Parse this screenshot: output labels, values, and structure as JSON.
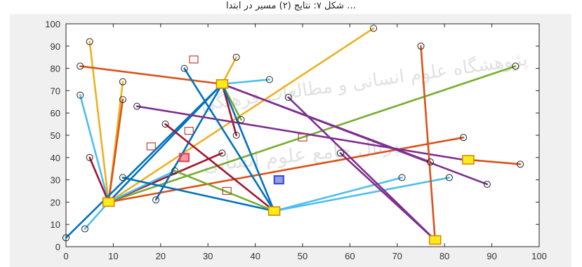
{
  "caption": "… شکل ۷: نتایج (۲) مسیر در ابتدا",
  "watermark": {
    "line1": "پژوهشگاه علوم انسانی و مطالعات فرهنگی",
    "line2": "پرتال جامع علوم انسانی"
  },
  "chart_data": {
    "type": "scatter",
    "xlim": [
      0,
      100
    ],
    "ylim": [
      0,
      100
    ],
    "x_ticks": [
      0,
      10,
      20,
      30,
      40,
      50,
      60,
      70,
      80,
      90,
      100
    ],
    "y_ticks": [
      0,
      10,
      20,
      30,
      40,
      50,
      60,
      70,
      80,
      90,
      100
    ],
    "grid": false,
    "hubs": [
      {
        "x": 9,
        "y": 20
      },
      {
        "x": 33,
        "y": 73
      },
      {
        "x": 44,
        "y": 16
      },
      {
        "x": 78,
        "y": 3
      },
      {
        "x": 85,
        "y": 39
      }
    ],
    "customers": [
      {
        "x": 0,
        "y": 4
      },
      {
        "x": 4,
        "y": 8
      },
      {
        "x": 5,
        "y": 92
      },
      {
        "x": 3,
        "y": 81
      },
      {
        "x": 3,
        "y": 68
      },
      {
        "x": 12,
        "y": 74
      },
      {
        "x": 12,
        "y": 66
      },
      {
        "x": 5,
        "y": 40
      },
      {
        "x": 12,
        "y": 31
      },
      {
        "x": 15,
        "y": 63
      },
      {
        "x": 19,
        "y": 21
      },
      {
        "x": 21,
        "y": 55
      },
      {
        "x": 23,
        "y": 34
      },
      {
        "x": 25,
        "y": 80
      },
      {
        "x": 33,
        "y": 42
      },
      {
        "x": 36,
        "y": 85
      },
      {
        "x": 37,
        "y": 57
      },
      {
        "x": 36,
        "y": 50
      },
      {
        "x": 43,
        "y": 75
      },
      {
        "x": 47,
        "y": 67
      },
      {
        "x": 58,
        "y": 42
      },
      {
        "x": 65,
        "y": 98
      },
      {
        "x": 71,
        "y": 31
      },
      {
        "x": 75,
        "y": 90
      },
      {
        "x": 77,
        "y": 38
      },
      {
        "x": 81,
        "y": 31
      },
      {
        "x": 84,
        "y": 49
      },
      {
        "x": 89,
        "y": 28
      },
      {
        "x": 95,
        "y": 81
      },
      {
        "x": 96,
        "y": 37
      }
    ],
    "candidate_sites": [
      {
        "x": 27,
        "y": 84
      },
      {
        "x": 18,
        "y": 45
      },
      {
        "x": 26,
        "y": 52
      },
      {
        "x": 34,
        "y": 25
      },
      {
        "x": 50,
        "y": 49
      }
    ],
    "selected_markers": [
      {
        "x": 25,
        "y": 40,
        "color": "#e8455a"
      },
      {
        "x": 45,
        "y": 30,
        "color": "#3a4fd1"
      }
    ],
    "routes": [
      {
        "from": [
          9,
          20
        ],
        "to": [
          5,
          92
        ],
        "color": "#edb120"
      },
      {
        "from": [
          9,
          20
        ],
        "to": [
          3,
          68
        ],
        "color": "#4dbeee"
      },
      {
        "from": [
          9,
          20
        ],
        "to": [
          12,
          74
        ],
        "color": "#edb120"
      },
      {
        "from": [
          9,
          20
        ],
        "to": [
          12,
          66
        ],
        "color": "#d95319"
      },
      {
        "from": [
          9,
          20
        ],
        "to": [
          5,
          40
        ],
        "color": "#a2142f"
      },
      {
        "from": [
          9,
          20
        ],
        "to": [
          33,
          73
        ],
        "color": "#0072bd"
      },
      {
        "from": [
          9,
          20
        ],
        "to": [
          65,
          98
        ],
        "color": "#edb120"
      },
      {
        "from": [
          9,
          20
        ],
        "to": [
          95,
          81
        ],
        "color": "#77ac30"
      },
      {
        "from": [
          9,
          20
        ],
        "to": [
          84,
          49
        ],
        "color": "#d95319"
      },
      {
        "from": [
          9,
          20
        ],
        "to": [
          33,
          42
        ],
        "color": "#a2142f"
      },
      {
        "from": [
          9,
          20
        ],
        "to": [
          23,
          34
        ],
        "color": "#4dbeee"
      },
      {
        "from": [
          0,
          4
        ],
        "to": [
          33,
          73
        ],
        "color": "#0072bd"
      },
      {
        "from": [
          33,
          73
        ],
        "to": [
          3,
          81
        ],
        "color": "#d95319"
      },
      {
        "from": [
          33,
          73
        ],
        "to": [
          36,
          85
        ],
        "color": "#edb120"
      },
      {
        "from": [
          33,
          73
        ],
        "to": [
          37,
          57
        ],
        "color": "#77ac30"
      },
      {
        "from": [
          33,
          73
        ],
        "to": [
          36,
          50
        ],
        "color": "#a2142f"
      },
      {
        "from": [
          33,
          73
        ],
        "to": [
          43,
          75
        ],
        "color": "#4dbeee"
      },
      {
        "from": [
          33,
          73
        ],
        "to": [
          44,
          16
        ],
        "color": "#0072bd"
      },
      {
        "from": [
          33,
          73
        ],
        "to": [
          19,
          21
        ],
        "color": "#0072bd"
      },
      {
        "from": [
          33,
          73
        ],
        "to": [
          89,
          28
        ],
        "color": "#7e2f8e"
      },
      {
        "from": [
          33,
          73
        ],
        "to": [
          77,
          38
        ],
        "color": "#7e2f8e"
      },
      {
        "from": [
          15,
          63
        ],
        "to": [
          84,
          39
        ],
        "color": "#7e2f8e"
      },
      {
        "from": [
          44,
          16
        ],
        "to": [
          25,
          80
        ],
        "color": "#0072bd"
      },
      {
        "from": [
          44,
          16
        ],
        "to": [
          21,
          55
        ],
        "color": "#a2142f"
      },
      {
        "from": [
          44,
          16
        ],
        "to": [
          12,
          31
        ],
        "color": "#0072bd"
      },
      {
        "from": [
          44,
          16
        ],
        "to": [
          23,
          34
        ],
        "color": "#77ac30"
      },
      {
        "from": [
          44,
          16
        ],
        "to": [
          71,
          31
        ],
        "color": "#4dbeee"
      },
      {
        "from": [
          44,
          16
        ],
        "to": [
          81,
          31
        ],
        "color": "#4dbeee"
      },
      {
        "from": [
          78,
          3
        ],
        "to": [
          47,
          67
        ],
        "color": "#7e2f8e"
      },
      {
        "from": [
          78,
          3
        ],
        "to": [
          58,
          42
        ],
        "color": "#7e2f8e"
      },
      {
        "from": [
          78,
          3
        ],
        "to": [
          75,
          90
        ],
        "color": "#d95319"
      },
      {
        "from": [
          85,
          39
        ],
        "to": [
          96,
          37
        ],
        "color": "#d95319"
      },
      {
        "from": [
          4,
          8
        ],
        "to": [
          9,
          20
        ],
        "color": "#4dbeee"
      }
    ]
  }
}
